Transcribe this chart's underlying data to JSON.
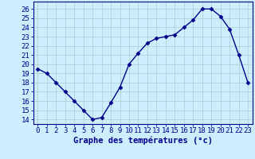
{
  "hours": [
    0,
    1,
    2,
    3,
    4,
    5,
    6,
    7,
    8,
    9,
    10,
    11,
    12,
    13,
    14,
    15,
    16,
    17,
    18,
    19,
    20,
    21,
    22,
    23
  ],
  "temps": [
    19.5,
    19.0,
    18.0,
    17.0,
    16.0,
    15.0,
    14.0,
    14.2,
    15.8,
    17.5,
    20.0,
    21.2,
    22.3,
    22.8,
    23.0,
    23.2,
    24.0,
    24.8,
    26.0,
    26.0,
    25.2,
    23.8,
    21.0,
    18.0
  ],
  "line_color": "#00008B",
  "marker": "D",
  "marker_size": 2.5,
  "bg_color": "#cceeff",
  "grid_color": "#aacccc",
  "xlabel": "Graphe des températures (°c)",
  "ylabel_ticks": [
    14,
    15,
    16,
    17,
    18,
    19,
    20,
    21,
    22,
    23,
    24,
    25,
    26
  ],
  "ylim": [
    13.5,
    26.8
  ],
  "xlim": [
    -0.5,
    23.5
  ],
  "axis_color": "#00008B",
  "tick_fontsize": 6.5,
  "xlabel_fontsize": 7.5,
  "linewidth": 1.0
}
